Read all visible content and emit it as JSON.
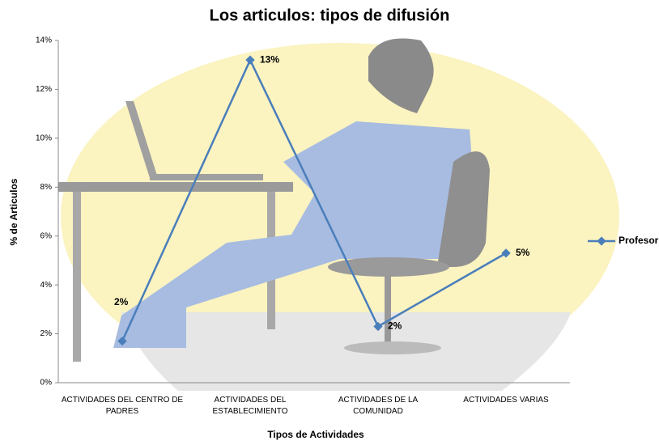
{
  "chart_data": {
    "type": "line",
    "title": "Los articulos: tipos de difusión",
    "x_label": "Tipos de Actividades",
    "y_label": "% de Articulos",
    "categories": [
      "ACTIVIDADES DEL CENTRO DE PADRES",
      "ACTIVIDADES DEL ESTABLECIMIENTO",
      "ACTIVIDADES DE LA COMUNIDAD",
      "ACTIVIDADES VARIAS"
    ],
    "series": [
      {
        "name": "Profesor",
        "color": "#4a7ebb",
        "values": [
          1.7,
          13.2,
          2.3,
          5.3
        ],
        "value_labels": [
          "2%",
          "13%",
          "2%",
          "5%"
        ]
      }
    ],
    "ylim": [
      0,
      14
    ],
    "yticks": [
      {
        "value": 0,
        "label": "0%"
      },
      {
        "value": 2,
        "label": "2%"
      },
      {
        "value": 4,
        "label": "4%"
      },
      {
        "value": 6,
        "label": "6%"
      },
      {
        "value": 8,
        "label": "8%"
      },
      {
        "value": 10,
        "label": "10%"
      },
      {
        "value": 12,
        "label": "12%"
      },
      {
        "value": 14,
        "label": "14%"
      }
    ],
    "legend": "right"
  }
}
